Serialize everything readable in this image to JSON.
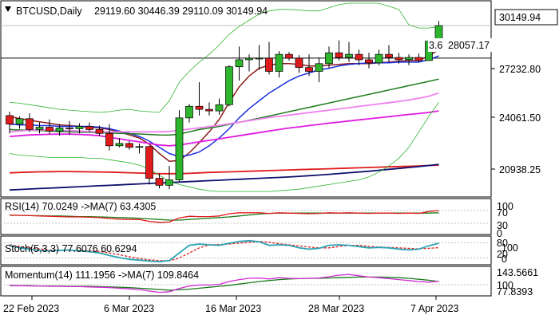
{
  "colors": {
    "bull": "#2db52d",
    "bear": "#e01b1b",
    "wick": "#000000",
    "ma_fast": "#8b1a1a",
    "ma_mid": "#1a2fe0",
    "ma_slow": "#1a7a1a",
    "ma_pink": "#ee82ee",
    "ma_magenta": "#e01be0",
    "ma_red": "#e01b1b",
    "ma_navy": "#10106e",
    "bollinger": "#2db52d",
    "rsi_line": "#e01b1b",
    "rsi_ma": "#1a7a1a",
    "stoch_main": "#2aa3b3",
    "stoch_signal": "#e01b1b",
    "mom_line": "#d02ad0",
    "mom_ma": "#1a7a1a",
    "level_line": "#c0c0c0"
  },
  "header": {
    "symbol_tf": "BTCUSD,Daily",
    "ohlc": "29119.60 30446.39 29110.09 30149.94",
    "menu_icon": "triangle-down-icon"
  },
  "price_axis": {
    "current_price": "30149.94",
    "level_label": "28057.17",
    "level_partial": "3.6",
    "ticks": [
      "27232.80",
      "24061.50",
      "20938.25"
    ]
  },
  "rsi_panel": {
    "label": "RSI(14) 70.0249  ->MA(7) 63.4305",
    "ticks": [
      "100",
      "70",
      "30",
      "0"
    ]
  },
  "stoch_panel": {
    "label": "Stoch(5,3,3) 77.6076 60.6294",
    "ticks": [
      "80",
      "100",
      "20",
      "0"
    ]
  },
  "mom_panel": {
    "label": "Momentum(14) 111.1956  ->MA(7) 109.8464",
    "ticks": [
      "143.5661",
      "100",
      "77.8393"
    ]
  },
  "time_axis": {
    "ticks": [
      "22 Feb 2023",
      "6 Mar 2023",
      "16 Mar 2023",
      "28 Mar 2023",
      "7 Apr 2023"
    ]
  },
  "chart_data": {
    "type": "candlestick",
    "y_range": [
      19200,
      31600
    ],
    "ohlc": [
      [
        24350,
        24600,
        23200,
        23800
      ],
      [
        23800,
        24300,
        23500,
        24150
      ],
      [
        24150,
        24500,
        23300,
        23450
      ],
      [
        23450,
        23900,
        23200,
        23600
      ],
      [
        23600,
        24100,
        23150,
        23350
      ],
      [
        23350,
        23800,
        23050,
        23550
      ],
      [
        23550,
        24000,
        23100,
        23500
      ],
      [
        23500,
        23850,
        23200,
        23650
      ],
      [
        23650,
        23900,
        23300,
        23450
      ],
      [
        23450,
        23700,
        23050,
        23200
      ],
      [
        23200,
        23800,
        22100,
        22400
      ],
      [
        22400,
        22900,
        22300,
        22550
      ],
      [
        22550,
        22700,
        22150,
        22300
      ],
      [
        22300,
        22550,
        21900,
        22350
      ],
      [
        22350,
        22400,
        19900,
        20300
      ],
      [
        20300,
        20600,
        19650,
        19850
      ],
      [
        19850,
        21100,
        19600,
        20200
      ],
      [
        20200,
        24700,
        20100,
        24200
      ],
      [
        24200,
        25100,
        23900,
        24950
      ],
      [
        24950,
        26500,
        24350,
        24750
      ],
      [
        24750,
        25200,
        24350,
        24650
      ],
      [
        24650,
        25450,
        24400,
        25050
      ],
      [
        25050,
        27600,
        24950,
        27500
      ],
      [
        27500,
        28800,
        26600,
        27950
      ],
      [
        27950,
        28300,
        27200,
        28050
      ],
      [
        28050,
        28900,
        27300,
        28050
      ],
      [
        28050,
        29100,
        27000,
        27200
      ],
      [
        27200,
        28500,
        26800,
        28300
      ],
      [
        28300,
        28450,
        27900,
        28050
      ],
      [
        28050,
        28250,
        27100,
        27450
      ],
      [
        27450,
        28300,
        26900,
        27200
      ],
      [
        27200,
        28100,
        26500,
        27700
      ],
      [
        27700,
        28800,
        27400,
        28400
      ],
      [
        28400,
        29200,
        27900,
        28100
      ],
      [
        28100,
        29100,
        27800,
        28300
      ],
      [
        28300,
        28600,
        27600,
        27950
      ],
      [
        27950,
        28400,
        27400,
        27750
      ],
      [
        27750,
        28600,
        27600,
        28300
      ],
      [
        28300,
        28900,
        27800,
        28100
      ],
      [
        28100,
        28400,
        27700,
        27950
      ],
      [
        27950,
        28300,
        27600,
        28100
      ],
      [
        28100,
        28350,
        27800,
        27900
      ],
      [
        27900,
        29300,
        27900,
        29150
      ],
      [
        29120,
        30450,
        29110,
        30150
      ]
    ],
    "overlays": [
      {
        "values": [
          24300,
          24150,
          24050,
          23950,
          23850,
          23750,
          23700,
          23650,
          23600,
          23550,
          23450,
          23300,
          23100,
          22900,
          22500,
          21900,
          21400,
          21450,
          21950,
          22600,
          23300,
          24100,
          25200,
          26200,
          26900,
          27400,
          27600,
          27700,
          27700,
          27650,
          27550,
          27550,
          27600,
          27650,
          27700,
          27700,
          27700,
          27750,
          27800,
          27850,
          27900,
          27900,
          28200,
          28600
        ]
      },
      {
        "values": [
          23800,
          23750,
          23750,
          23700,
          23700,
          23650,
          23650,
          23650,
          23650,
          23600,
          23500,
          23350,
          23200,
          23000,
          22700,
          22300,
          21900,
          21700,
          21800,
          22000,
          22400,
          22900,
          23500,
          24200,
          24800,
          25300,
          25800,
          26200,
          26600,
          26900,
          27100,
          27300,
          27400,
          27550,
          27650,
          27700,
          27750,
          27750,
          27750,
          27800,
          27800,
          27800,
          27950,
          28200
        ]
      },
      {
        "values": [
          23450,
          23420,
          23400,
          23380,
          23350,
          23320,
          23300,
          23280,
          23270,
          23250,
          23230,
          23200,
          23180,
          23160,
          23130,
          23100,
          23090,
          23150,
          23300,
          23450,
          23550,
          23650,
          23780,
          23920,
          24050,
          24180,
          24320,
          24460,
          24600,
          24740,
          24880,
          25020,
          25160,
          25300,
          25440,
          25580,
          25720,
          25860,
          26000,
          26140,
          26280,
          26420,
          26560,
          26700
        ]
      },
      {
        "values": [
          23300,
          23350,
          23400,
          23420,
          23420,
          23400,
          23380,
          23350,
          23320,
          23300,
          23300,
          23300,
          23300,
          23300,
          23300,
          23300,
          23320,
          23400,
          23480,
          23560,
          23640,
          23720,
          23820,
          23920,
          24020,
          24120,
          24220,
          24300,
          24380,
          24460,
          24540,
          24620,
          24700,
          24780,
          24860,
          24940,
          25020,
          25100,
          25180,
          25260,
          25360,
          25460,
          25600,
          25800
        ]
      },
      {
        "values": [
          23000,
          23050,
          23100,
          23120,
          23140,
          23150,
          23150,
          23130,
          23100,
          23050,
          22950,
          22850,
          22750,
          22650,
          22550,
          22450,
          22400,
          22450,
          22550,
          22650,
          22750,
          22850,
          22950,
          23050,
          23150,
          23250,
          23350,
          23450,
          23550,
          23620,
          23700,
          23780,
          23860,
          23930,
          24000,
          24070,
          24140,
          24210,
          24280,
          24350,
          24420,
          24480,
          24550,
          24650
        ]
      },
      {
        "values": [
          20650,
          20680,
          20700,
          20720,
          20730,
          20740,
          20740,
          20730,
          20720,
          20710,
          20700,
          20680,
          20660,
          20640,
          20620,
          20600,
          20600,
          20600,
          20620,
          20650,
          20680,
          20700,
          20720,
          20740,
          20760,
          20780,
          20800,
          20820,
          20840,
          20860,
          20880,
          20900,
          20920,
          20940,
          20960,
          20980,
          21000,
          21020,
          21040,
          21060,
          21080,
          21100,
          21130,
          21150
        ]
      },
      {
        "values": [
          19550,
          19580,
          19610,
          19640,
          19670,
          19700,
          19730,
          19760,
          19790,
          19820,
          19850,
          19880,
          19910,
          19940,
          19970,
          20000,
          20030,
          20060,
          20090,
          20120,
          20150,
          20180,
          20210,
          20240,
          20270,
          20300,
          20330,
          20360,
          20390,
          20430,
          20470,
          20510,
          20560,
          20610,
          20660,
          20710,
          20760,
          20820,
          20880,
          20940,
          21000,
          21060,
          21130,
          21200
        ]
      },
      {
        "values": [
          25200,
          25150,
          25050,
          24950,
          24850,
          24750,
          24700,
          24650,
          24600,
          24550,
          24600,
          24700,
          24750,
          24650,
          24600,
          24550,
          25300,
          26500,
          27200,
          27800,
          28300,
          28900,
          29600,
          30100,
          30500,
          30900,
          31100,
          31200,
          31200,
          31150,
          31100,
          31100,
          31300,
          31500,
          31600,
          31600,
          31600,
          31600,
          31400,
          31200,
          30200,
          30000,
          30000,
          30100
        ]
      },
      {
        "values": [
          21900,
          21800,
          21750,
          21700,
          21650,
          21650,
          21650,
          21650,
          21600,
          21600,
          21500,
          21400,
          21300,
          21150,
          20900,
          20500,
          20100,
          19900,
          19750,
          19600,
          19500,
          19450,
          19450,
          19450,
          19450,
          19450,
          19450,
          19500,
          19550,
          19600,
          19700,
          19800,
          19900,
          20000,
          20100,
          20200,
          20400,
          20700,
          21100,
          21600,
          22300,
          23300,
          24300,
          25200
        ]
      }
    ],
    "horizontal_level": 28057.17,
    "last_price": 30149.94,
    "rsi": {
      "range": [
        0,
        100
      ],
      "levels": [
        70,
        30
      ],
      "line": [
        56,
        55,
        54,
        53,
        52,
        51,
        50,
        50,
        49,
        48,
        45,
        43,
        42,
        42,
        36,
        33,
        34,
        47,
        52,
        51,
        51,
        53,
        60,
        63,
        63,
        63,
        61,
        63,
        62,
        61,
        60,
        61,
        63,
        62,
        63,
        62,
        61,
        62,
        62,
        61,
        62,
        61,
        67,
        70
      ],
      "ma": [
        55,
        55,
        54,
        54,
        53,
        53,
        52,
        51,
        51,
        50,
        49,
        48,
        47,
        46,
        44,
        42,
        40,
        40,
        42,
        44,
        46,
        48,
        50,
        53,
        56,
        59,
        61,
        62,
        62,
        62,
        62,
        62,
        62,
        62,
        62,
        62,
        62,
        62,
        62,
        62,
        62,
        62,
        62,
        63
      ]
    },
    "stoch": {
      "range": [
        0,
        100
      ],
      "levels": [
        80,
        20
      ],
      "main": [
        70,
        60,
        55,
        50,
        48,
        50,
        52,
        48,
        45,
        40,
        30,
        22,
        15,
        12,
        8,
        6,
        10,
        40,
        70,
        75,
        72,
        70,
        78,
        85,
        88,
        84,
        70,
        72,
        70,
        60,
        55,
        58,
        70,
        72,
        70,
        65,
        60,
        62,
        60,
        55,
        52,
        55,
        68,
        78
      ],
      "signal": [
        72,
        66,
        60,
        56,
        52,
        50,
        50,
        50,
        48,
        46,
        40,
        33,
        25,
        18,
        13,
        10,
        9,
        20,
        40,
        60,
        72,
        73,
        75,
        78,
        82,
        85,
        82,
        76,
        72,
        68,
        63,
        60,
        60,
        65,
        70,
        70,
        66,
        63,
        62,
        60,
        58,
        56,
        58,
        61
      ]
    },
    "momentum": {
      "range": [
        70,
        150
      ],
      "levels": [
        100
      ],
      "line": [
        98,
        97,
        96,
        96,
        95,
        95,
        94,
        94,
        93,
        92,
        91,
        89,
        87,
        85,
        80,
        76,
        78,
        88,
        96,
        99,
        99,
        101,
        110,
        116,
        120,
        121,
        118,
        122,
        120,
        119,
        120,
        121,
        125,
        130,
        132,
        128,
        124,
        122,
        119,
        116,
        113,
        110,
        108,
        111
      ],
      "ma": [
        97,
        97,
        97,
        96,
        96,
        96,
        95,
        95,
        95,
        94,
        93,
        92,
        91,
        89,
        87,
        85,
        83,
        84,
        86,
        89,
        92,
        95,
        98,
        102,
        106,
        110,
        113,
        116,
        118,
        119,
        120,
        120,
        121,
        122,
        123,
        124,
        124,
        124,
        123,
        122,
        120,
        117,
        114,
        110
      ]
    }
  }
}
